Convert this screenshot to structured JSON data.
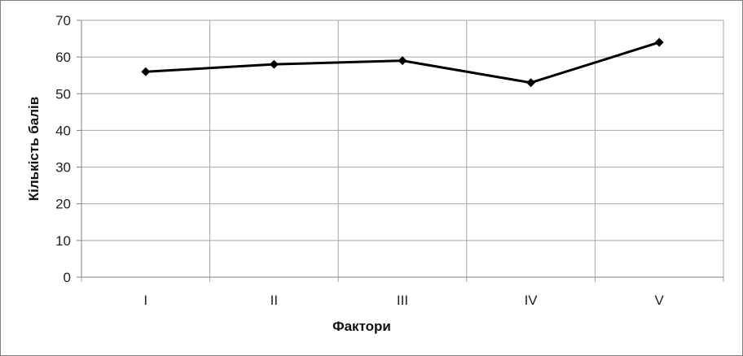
{
  "chart_data": {
    "type": "line",
    "categories": [
      "I",
      "II",
      "III",
      "IV",
      "V"
    ],
    "series": [
      {
        "values": [
          56,
          58,
          59,
          53,
          64
        ]
      }
    ],
    "xlabel": "Фактори",
    "ylabel": "Кількість балів",
    "ylim": [
      0,
      70
    ],
    "yticks": [
      0,
      10,
      20,
      30,
      40,
      50,
      60,
      70
    ],
    "grid": true,
    "legend": "none",
    "colors": {
      "line": "#000000",
      "grid": "#a6a6a6"
    }
  }
}
